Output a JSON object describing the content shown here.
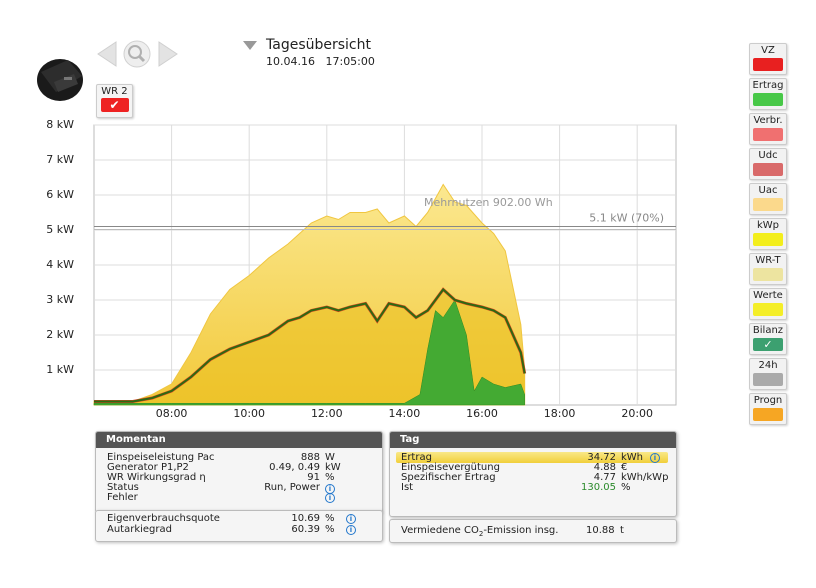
{
  "header": {
    "title": "Tagesübersicht",
    "date": "10.04.16",
    "time": "17:05:00"
  },
  "inverter_button": {
    "label": "WR 2",
    "checked": true
  },
  "chart_data": {
    "type": "area",
    "x_range": [
      "06:00",
      "21:00"
    ],
    "x_ticks": [
      "08:00",
      "10:00",
      "12:00",
      "14:00",
      "16:00",
      "18:00",
      "20:00"
    ],
    "y_ticks": [
      "1 kW",
      "2 kW",
      "3 kW",
      "4 kW",
      "5 kW",
      "6 kW",
      "7 kW",
      "8 kW"
    ],
    "ylim": [
      0,
      8
    ],
    "limit_line": {
      "value": 5.1,
      "label": "5.1 kW (70%)"
    },
    "annotation": "Mehrnutzen 902.00 Wh",
    "series": [
      {
        "name": "Ertrag",
        "color": "#e6c214",
        "x": [
          6.0,
          7.0,
          7.5,
          8.0,
          8.5,
          9.0,
          9.5,
          10.0,
          10.5,
          11.0,
          11.3,
          11.6,
          12.0,
          12.3,
          12.6,
          13.0,
          13.3,
          13.6,
          14.0,
          14.3,
          14.6,
          15.0,
          15.3,
          15.6,
          16.0,
          16.3,
          16.6,
          17.0,
          17.1
        ],
        "values": [
          0.1,
          0.1,
          0.2,
          0.4,
          0.8,
          1.3,
          1.6,
          1.8,
          2.0,
          2.4,
          2.5,
          2.7,
          2.8,
          2.7,
          2.8,
          2.9,
          2.4,
          2.9,
          2.8,
          2.5,
          2.7,
          3.3,
          3.0,
          2.9,
          2.8,
          2.7,
          2.5,
          1.5,
          0.9
        ]
      },
      {
        "name": "Uac",
        "color": "#fbe27a",
        "x": [
          6.0,
          7.0,
          7.5,
          8.0,
          8.5,
          9.0,
          9.5,
          10.0,
          10.5,
          11.0,
          11.3,
          11.6,
          12.0,
          12.3,
          12.6,
          13.0,
          13.3,
          13.6,
          14.0,
          14.3,
          14.6,
          15.0,
          15.3,
          15.6,
          16.0,
          16.3,
          16.6,
          17.0,
          17.1
        ],
        "values": [
          0.1,
          0.1,
          0.3,
          0.6,
          1.5,
          2.6,
          3.3,
          3.7,
          4.2,
          4.6,
          4.9,
          5.2,
          5.4,
          5.3,
          5.5,
          5.5,
          5.6,
          5.2,
          5.4,
          5.1,
          5.5,
          6.3,
          5.8,
          5.7,
          5.2,
          4.9,
          4.4,
          2.3,
          1.0
        ]
      },
      {
        "name": "Verbr.",
        "color": "#44aa33",
        "x": [
          6.0,
          8.0,
          9.0,
          10.0,
          11.0,
          12.0,
          13.0,
          14.0,
          14.4,
          14.6,
          14.8,
          15.0,
          15.3,
          15.6,
          15.8,
          16.0,
          16.3,
          16.6,
          17.0,
          17.1
        ],
        "values": [
          0.05,
          0.05,
          0.05,
          0.05,
          0.05,
          0.05,
          0.05,
          0.05,
          0.3,
          1.6,
          2.7,
          2.5,
          3.0,
          2.0,
          0.4,
          0.8,
          0.6,
          0.5,
          0.6,
          0.3
        ]
      }
    ]
  },
  "legend": [
    {
      "label": "VZ",
      "color": "#e82020"
    },
    {
      "label": "Ertrag",
      "color": "#48c848"
    },
    {
      "label": "Verbr.",
      "color": "#f07070"
    },
    {
      "label": "Udc",
      "color": "#d96a6a"
    },
    {
      "label": "Uac",
      "color": "#fbd98c"
    },
    {
      "label": "kWp",
      "color": "#f3ee1c"
    },
    {
      "label": "WR-T",
      "color": "#ede4a0"
    },
    {
      "label": "Werte",
      "color": "#f4ee28"
    },
    {
      "label": "Bilanz",
      "color": "#3ca070",
      "checked": true
    },
    {
      "label": "24h",
      "color": "#aaaaaa"
    },
    {
      "label": "Progn",
      "color": "#f6a623"
    }
  ],
  "momentan": {
    "title": "Momentan",
    "rows": [
      {
        "label": "Einspeiseleistung Pac",
        "value": "888",
        "unit": "W"
      },
      {
        "label": "Generator P1,P2",
        "value": "0.49, 0.49",
        "unit": "kW"
      },
      {
        "label": "WR Wirkungsgrad η",
        "value": "91",
        "unit": "%"
      },
      {
        "label": "Status",
        "value": "Run, Power",
        "unit": ""
      },
      {
        "label": "Fehler",
        "value": "",
        "unit": ""
      }
    ],
    "quotes": [
      {
        "label": "Eigenverbrauchsquote",
        "value": "10.69",
        "unit": "%"
      },
      {
        "label": "Autarkiegrad",
        "value": "60.39",
        "unit": "%"
      }
    ]
  },
  "tag": {
    "title": "Tag",
    "rows": [
      {
        "label": "Ertrag",
        "value": "34.72",
        "unit": "kWh"
      },
      {
        "label": "Einspeisevergütung",
        "value": "4.88",
        "unit": "€"
      },
      {
        "label": "Spezifischer Ertrag",
        "value": "4.77",
        "unit": "kWh/kWp"
      },
      {
        "label": "Ist",
        "value": "130.05",
        "unit": "%"
      }
    ],
    "co2_label_pre": "Vermiedene CO",
    "co2_sub": "2",
    "co2_label_post": "-Emission insg.",
    "co2_value": "10.88",
    "co2_unit": "t"
  }
}
